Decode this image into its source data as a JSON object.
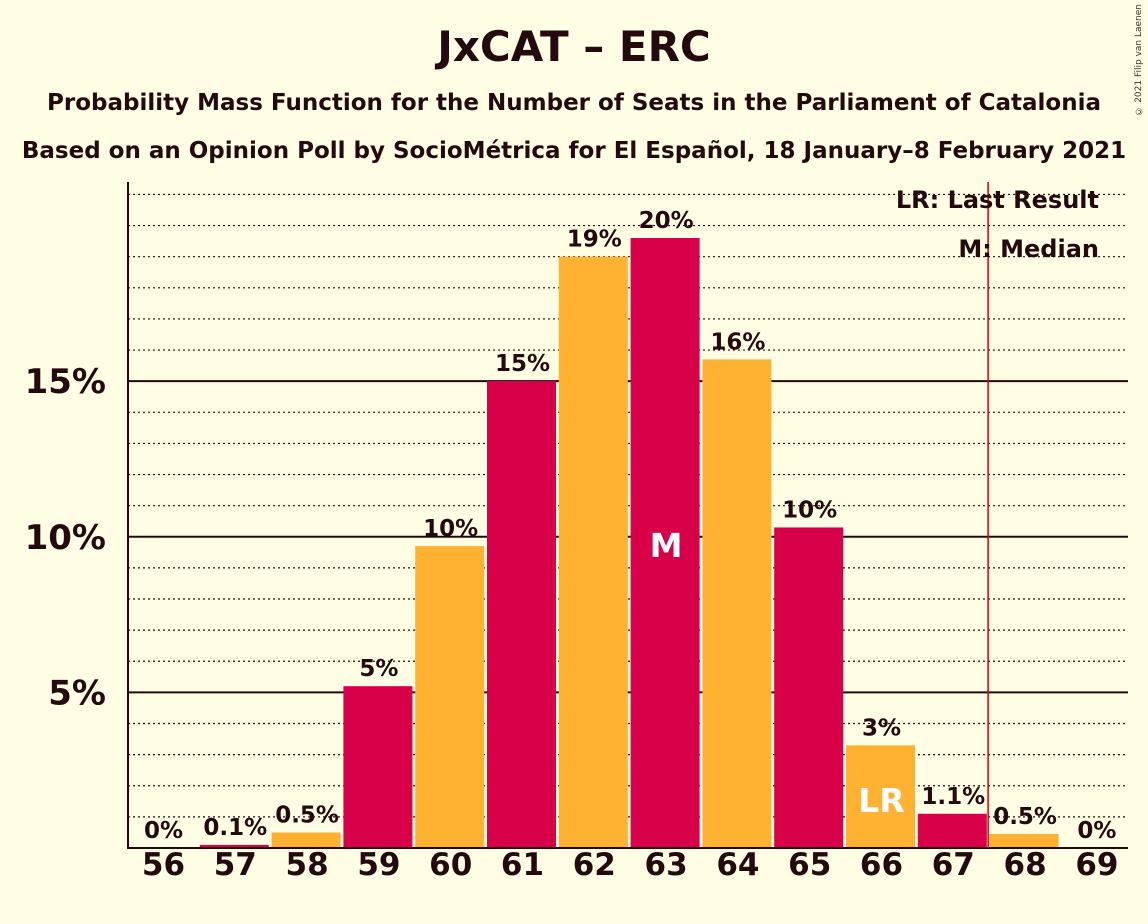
{
  "title": "JxCAT – ERC",
  "subtitle1": "Probability Mass Function for the Number of Seats in the Parliament of Catalonia",
  "subtitle2": "Based on an Opinion Poll by SocioMétrica for El Español, 18 January–8 February 2021",
  "copyright": "© 2021 Filip van Laenen",
  "chart_data": {
    "type": "bar",
    "categories": [
      "56",
      "57",
      "58",
      "59",
      "60",
      "61",
      "62",
      "63",
      "64",
      "65",
      "66",
      "67",
      "68",
      "69"
    ],
    "values": [
      0,
      0.1,
      0.5,
      5.2,
      9.7,
      15.0,
      19.0,
      19.6,
      15.7,
      10.3,
      3.3,
      1.1,
      0.45,
      0
    ],
    "labels": [
      "0%",
      "0.1%",
      "0.5%",
      "5%",
      "10%",
      "15%",
      "19%",
      "20%",
      "16%",
      "10%",
      "3%",
      "1.1%",
      "0.5%",
      "0%"
    ],
    "ylim": [
      0,
      21.4
    ],
    "yticks": [
      {
        "value": 5,
        "label": "5%"
      },
      {
        "value": 10,
        "label": "10%"
      },
      {
        "value": 15,
        "label": "15%"
      }
    ],
    "minor_grid_step": 1,
    "colors": [
      "#FFB232",
      "#D70049"
    ],
    "median_index": 7,
    "median_label": "M",
    "last_result_index": 10,
    "last_result_label": "LR",
    "threshold_after_index": 12,
    "threshold_color": "#D70000",
    "legend": [
      "LR: Last Result",
      "M: Median"
    ],
    "legend_position": "top-right"
  }
}
